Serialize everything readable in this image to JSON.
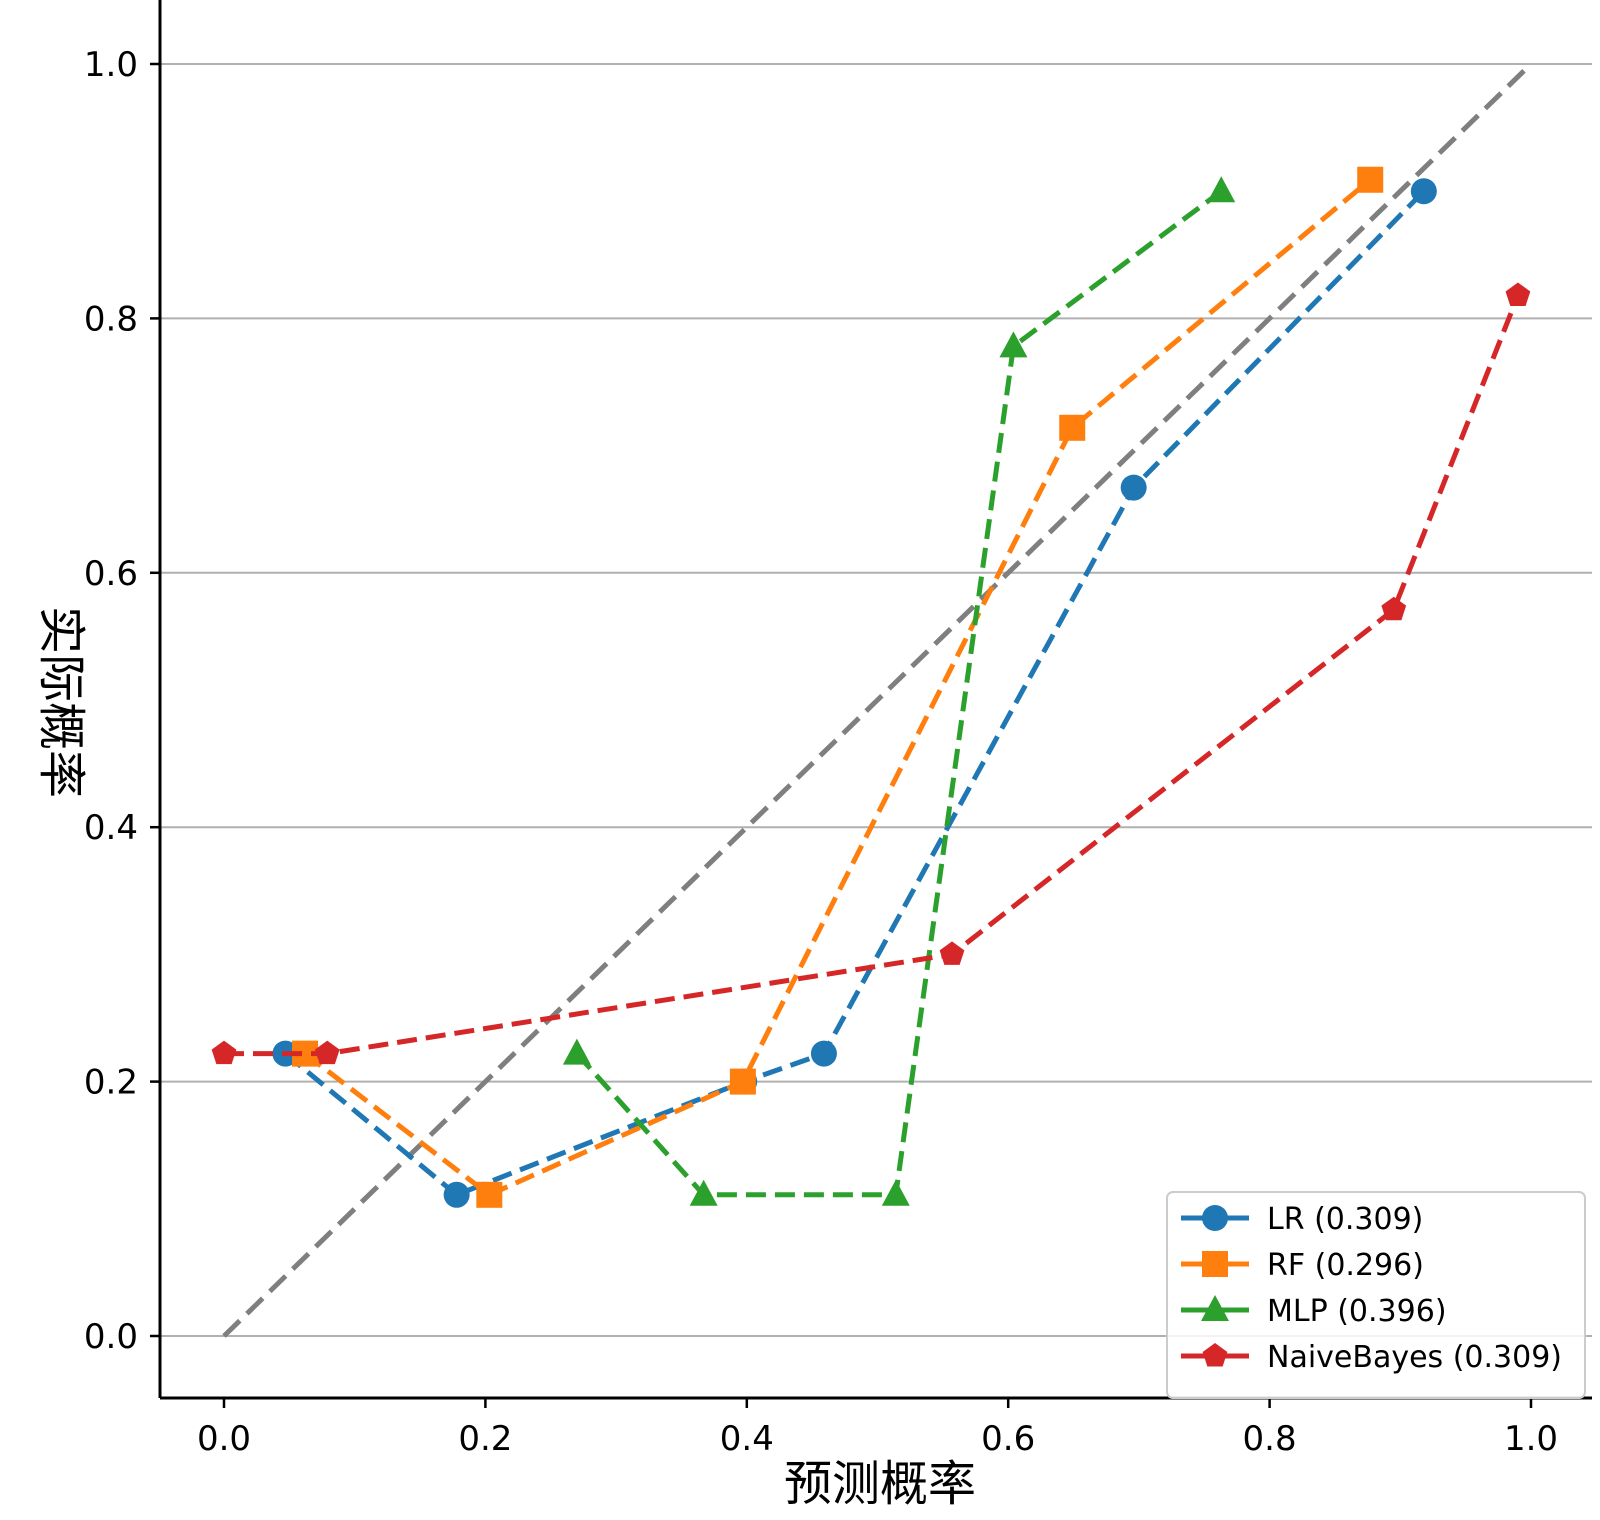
{
  "chart_data": {
    "type": "line",
    "title": "",
    "xlabel": "预测概率",
    "ylabel": "实际概率",
    "xlim": [
      -0.05,
      1.05
    ],
    "ylim": [
      -0.05,
      1.05
    ],
    "x_ticks": [
      "0.0",
      "0.2",
      "0.4",
      "0.6",
      "0.8",
      "1.0"
    ],
    "y_ticks": [
      "0.0",
      "0.2",
      "0.4",
      "0.6",
      "0.8",
      "1.0"
    ],
    "grid": "horizontal",
    "legend_position": "lower-right",
    "reference_line": {
      "x": [
        0,
        1
      ],
      "y": [
        0,
        1
      ],
      "color": "#7f7f7f",
      "style": "dashed"
    },
    "series": [
      {
        "name": "LR (0.309)",
        "color": "#1f77b4",
        "marker": "circle",
        "x": [
          0.047,
          0.178,
          0.398,
          0.459,
          0.696,
          0.918
        ],
        "y": [
          0.222,
          0.111,
          0.2,
          0.222,
          0.667,
          0.9
        ]
      },
      {
        "name": "RF (0.296)",
        "color": "#ff7f0e",
        "marker": "square",
        "x": [
          0.062,
          0.203,
          0.397,
          0.649,
          0.877
        ],
        "y": [
          0.222,
          0.111,
          0.2,
          0.714,
          0.909
        ]
      },
      {
        "name": "MLP (0.396)",
        "color": "#2ca02c",
        "marker": "triangle",
        "x": [
          0.27,
          0.367,
          0.514,
          0.604,
          0.763
        ],
        "y": [
          0.222,
          0.111,
          0.111,
          0.778,
          0.9
        ]
      },
      {
        "name": "NaiveBayes (0.309)",
        "color": "#d62728",
        "marker": "pentagon",
        "x": [
          0.0,
          0.079,
          0.557,
          0.895,
          0.99
        ],
        "y": [
          0.222,
          0.222,
          0.3,
          0.571,
          0.818
        ]
      }
    ]
  }
}
